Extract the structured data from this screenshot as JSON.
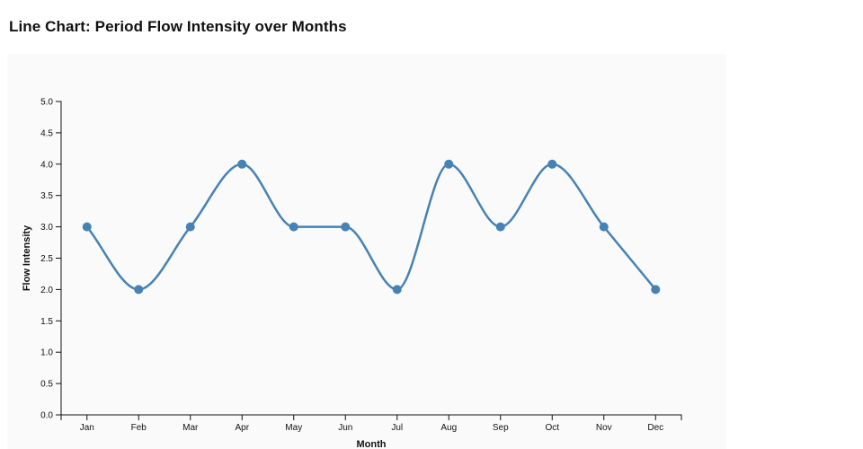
{
  "page": {
    "title": "Line Chart: Period Flow Intensity over Months"
  },
  "chart_data": {
    "type": "line",
    "title": "Line Chart: Period Flow Intensity over Months",
    "categories": [
      "Jan",
      "Feb",
      "Mar",
      "Apr",
      "May",
      "Jun",
      "Jul",
      "Aug",
      "Sep",
      "Oct",
      "Nov",
      "Dec"
    ],
    "values": [
      3,
      2,
      3,
      4,
      3,
      3,
      2,
      4,
      3,
      4,
      3,
      2
    ],
    "xlabel": "Month",
    "ylabel": "Flow Intensity",
    "ylim": [
      0,
      5
    ],
    "ytick_step": 0.5,
    "ytick_labels": [
      "0.0",
      "0.5",
      "1.0",
      "1.5",
      "2.0",
      "2.5",
      "3.0",
      "3.5",
      "4.0",
      "4.5",
      "5.0"
    ],
    "grid": false,
    "legend": false,
    "curve": "monotone",
    "line_color": "#4682b4",
    "marker_color": "#4682b4",
    "axis_color": "#111111",
    "panel_bg": "#fafafa",
    "page_bg": "#ffffff"
  }
}
